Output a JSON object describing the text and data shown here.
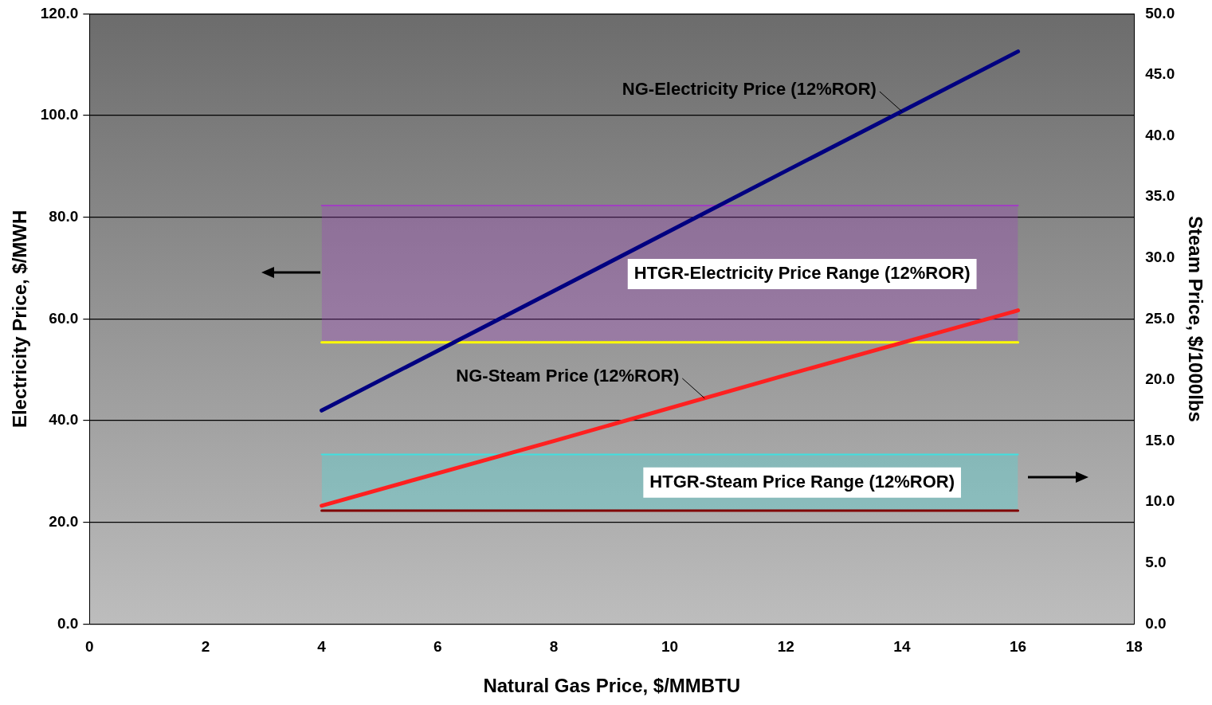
{
  "chart_data": {
    "type": "line",
    "xlabel": "Natural Gas Price, $/MMBTU",
    "ylabel": "Electricity Price, $/MWH",
    "y2label": "Steam Price, $/1000lbs",
    "xlim": [
      0,
      18
    ],
    "xticks": [
      0,
      2,
      4,
      6,
      8,
      10,
      12,
      14,
      16,
      18
    ],
    "ylim": [
      0,
      120
    ],
    "yticks": [
      {
        "value": 0,
        "label": "0.0"
      },
      {
        "value": 20,
        "label": "20.0"
      },
      {
        "value": 40,
        "label": "40.0"
      },
      {
        "value": 60,
        "label": "60.0"
      },
      {
        "value": 80,
        "label": "80.0"
      },
      {
        "value": 100,
        "label": "100.0"
      },
      {
        "value": 120,
        "label": "120.0"
      }
    ],
    "y2lim": [
      0,
      50
    ],
    "y2ticks": [
      {
        "value": 0,
        "label": "0.0"
      },
      {
        "value": 5,
        "label": "5.0"
      },
      {
        "value": 10,
        "label": "10.0"
      },
      {
        "value": 15,
        "label": "15.0"
      },
      {
        "value": 20,
        "label": "20.0"
      },
      {
        "value": 25,
        "label": "25.0"
      },
      {
        "value": 30,
        "label": "30.0"
      },
      {
        "value": 35,
        "label": "35.0"
      },
      {
        "value": 40,
        "label": "40.0"
      },
      {
        "value": 45,
        "label": "45.0"
      },
      {
        "value": 50,
        "label": "50.0"
      }
    ],
    "x": [
      4,
      8,
      12,
      16
    ],
    "grid": "y",
    "legend": false,
    "line_style": "solid",
    "series": [
      {
        "color": "#000080",
        "values": [
          42.0,
          65.5,
          89.1,
          112.6
        ]
      },
      {
        "color": "#ff2020",
        "axis": "y2",
        "values": [
          9.7,
          15.0,
          20.4,
          25.7
        ]
      },
      {
        "color": "#ffff00",
        "values": [
          55.4,
          55.4,
          55.4,
          55.4
        ]
      },
      {
        "type": "area",
        "color": "#a040c0",
        "values": [
          82.3,
          82.3,
          82.3,
          82.3
        ]
      },
      {
        "color": "#800000",
        "axis": "y2",
        "values": [
          9.3,
          9.3,
          9.3,
          9.3
        ]
      },
      {
        "type": "area",
        "color": "#40e0e0",
        "axis": "y2",
        "values": [
          13.9,
          13.9,
          13.9,
          13.9
        ]
      }
    ],
    "annotations": [
      {
        "text": "NG-Electricity Price (12%ROR)",
        "x": 14.0,
        "y": 100.8
      },
      "HTGR-Electricity Price Range (12%ROR)",
      {
        "text": "NG-Steam Price (12%ROR)",
        "x": 10.6,
        "y": 44.4
      },
      "HTGR-Steam Price Range (12%ROR)"
    ]
  }
}
